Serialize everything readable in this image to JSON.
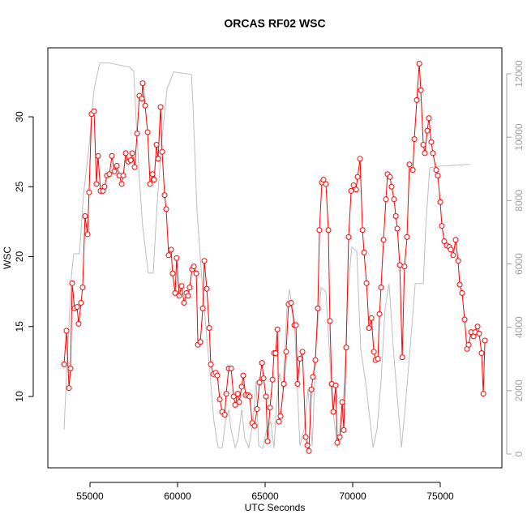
{
  "chart_data": {
    "type": "line",
    "title": "ORCAS RF02 WSC",
    "xlabel": "UTC Seconds",
    "ylabel": "WSC",
    "xlim": [
      52593,
      78518
    ],
    "xticks": [
      55000,
      60000,
      65000,
      70000,
      75000
    ],
    "ylim": [
      4.9,
      34.93
    ],
    "yticks": [
      10,
      15,
      20,
      25,
      30
    ],
    "y2lim": [
      -435,
      12819
    ],
    "y2ticks": [
      0,
      2000,
      4000,
      6000,
      8000,
      10000,
      12000
    ],
    "series": [
      {
        "color": "#ff0000",
        "markers": true,
        "x": [
          53520,
          53660,
          53800,
          53890,
          53980,
          54120,
          54260,
          54350,
          54490,
          54580,
          54720,
          54860,
          54950,
          55090,
          55230,
          55370,
          55460,
          55600,
          55740,
          55830,
          55970,
          56110,
          56250,
          56390,
          56530,
          56670,
          56810,
          56900,
          57040,
          57180,
          57320,
          57410,
          57550,
          57690,
          57820,
          57960,
          58010,
          58150,
          58290,
          58430,
          58570,
          58660,
          58800,
          58890,
          59030,
          59120,
          59260,
          59350,
          59490,
          59630,
          59720,
          59860,
          59950,
          60090,
          60230,
          60370,
          60510,
          60600,
          60690,
          60830,
          60930,
          61070,
          61160,
          61300,
          61440,
          61530,
          61670,
          61810,
          61900,
          62040,
          62180,
          62270,
          62410,
          62550,
          62690,
          62780,
          62920,
          63060,
          63200,
          63290,
          63430,
          63520,
          63660,
          63750,
          63890,
          64030,
          64120,
          64260,
          64400,
          64540,
          64680,
          64820,
          64910,
          65050,
          65140,
          65280,
          65420,
          65510,
          65600,
          65700,
          65790,
          65880,
          66070,
          66200,
          66340,
          66480,
          66670,
          66760,
          66850,
          66990,
          67130,
          67320,
          67410,
          67500,
          67640,
          67730,
          67870,
          68010,
          68100,
          68240,
          68330,
          68470,
          68610,
          68700,
          68800,
          68890,
          69030,
          69120,
          69260,
          69400,
          69490,
          69630,
          69770,
          69910,
          70050,
          70190,
          70280,
          70420,
          70560,
          70650,
          70790,
          70930,
          71070,
          71210,
          71300,
          71440,
          71530,
          71620,
          71760,
          71900,
          71990,
          72130,
          72220,
          72360,
          72460,
          72550,
          72690,
          72830,
          72960,
          73100,
          73240,
          73430,
          73520,
          73660,
          73800,
          73890,
          74030,
          74120,
          74260,
          74350,
          74490,
          74580,
          74770,
          74860,
          75000,
          75090,
          75230,
          75370,
          75510,
          75600,
          75740,
          75880,
          76020,
          76110,
          76250,
          76390,
          76530,
          76620,
          76760,
          76900,
          76990,
          77130,
          77220,
          77360,
          77460,
          77550
        ],
        "values": [
          12.3,
          14.7,
          10.6,
          12.0,
          18.1,
          16.3,
          16.4,
          15.2,
          16.7,
          17.8,
          22.9,
          21.6,
          24.6,
          30.2,
          30.4,
          25.2,
          27.2,
          24.7,
          24.7,
          25.0,
          25.8,
          25.9,
          27.2,
          26.1,
          26.5,
          25.8,
          25.2,
          25.8,
          27.4,
          26.8,
          26.9,
          27.4,
          26.4,
          28.8,
          31.5,
          31.3,
          32.4,
          30.8,
          28.9,
          25.2,
          25.9,
          25.5,
          28.0,
          27.0,
          30.7,
          27.5,
          24.4,
          23.4,
          20.1,
          20.5,
          18.8,
          17.4,
          19.9,
          17.2,
          17.9,
          16.7,
          17.4,
          17.2,
          17.8,
          19.1,
          19.3,
          18.8,
          13.7,
          13.9,
          16.3,
          19.7,
          17.7,
          14.9,
          12.3,
          11.6,
          11.7,
          11.5,
          9.8,
          8.9,
          8.7,
          10.2,
          12.0,
          12.0,
          10.0,
          9.4,
          10.2,
          9.6,
          10.7,
          11.5,
          10.1,
          10.1,
          10.0,
          8.1,
          7.9,
          9.1,
          11.0,
          12.4,
          11.3,
          10.0,
          6.8,
          9.2,
          11.2,
          13.1,
          13.1,
          14.8,
          8.2,
          8.6,
          10.9,
          13.2,
          16.6,
          16.7,
          15.1,
          15.1,
          10.9,
          12.7,
          13.2,
          7.1,
          6.5,
          6.1,
          10.5,
          11.4,
          12.6,
          16.3,
          21.9,
          25.3,
          25.5,
          25.2,
          21.9,
          15.4,
          10.9,
          8.9,
          10.8,
          6.7,
          7.1,
          9.6,
          7.6,
          13.5,
          21.4,
          24.7,
          25.1,
          24.8,
          25.7,
          27.0,
          21.9,
          20.3,
          18.1,
          14.9,
          15.6,
          13.2,
          12.6,
          12.7,
          15.9,
          17.8,
          21.2,
          24.1,
          25.9,
          25.7,
          25.0,
          24.1,
          22.9,
          22.0,
          19.4,
          12.8,
          19.3,
          21.4,
          26.6,
          26.2,
          28.4,
          31.2,
          33.8,
          31.9,
          28.0,
          27.4,
          29.0,
          29.9,
          28.2,
          27.4,
          26.2,
          25.8,
          23.9,
          22.2,
          21.1,
          20.8,
          20.7,
          20.5,
          20.1,
          21.2,
          19.7,
          18.0,
          17.4,
          15.5,
          13.4,
          13.7,
          14.6,
          14.3,
          14.6,
          15.0,
          14.5,
          13.1,
          10.2,
          14.0
        ]
      },
      {
        "color": "#bebebe",
        "axis": "y2",
        "markers": false,
        "x": [
          53520,
          53750,
          53940,
          54070,
          54400,
          54630,
          54950,
          55230,
          55560,
          56110,
          57270,
          57500,
          57640,
          57820,
          58010,
          58330,
          58610,
          58840,
          59120,
          59400,
          59770,
          60790,
          60880,
          61110,
          61440,
          61810,
          62080,
          62320,
          62550,
          62730,
          62920,
          63060,
          63290,
          63470,
          63660,
          63840,
          64070,
          64310,
          64490,
          64630,
          64860,
          65090,
          65320,
          65510,
          65650,
          65830,
          66020,
          66250,
          66390,
          66670,
          66990,
          67220,
          67450,
          67690,
          67920,
          68200,
          68470,
          68660,
          68840,
          69120,
          69310,
          69540,
          69720,
          69950,
          70230,
          70460,
          70790,
          71160,
          71390,
          71620,
          71850,
          72080,
          72320,
          72780,
          73010,
          73240,
          73570,
          74030,
          74170,
          74400,
          75090,
          76710
        ],
        "values": [
          768,
          3580,
          5630,
          6320,
          6320,
          8190,
          9730,
          11520,
          12340,
          12340,
          12210,
          12080,
          10500,
          8700,
          7170,
          5710,
          5710,
          7940,
          9980,
          11520,
          12060,
          11980,
          11010,
          7680,
          5120,
          2820,
          1020,
          200,
          200,
          1020,
          1410,
          770,
          200,
          510,
          1410,
          510,
          200,
          1020,
          2300,
          260,
          180,
          770,
          1020,
          180,
          1540,
          2560,
          2050,
          4610,
          5200,
          4220,
          260,
          770,
          2050,
          260,
          3580,
          5250,
          5120,
          3330,
          1540,
          200,
          510,
          2300,
          5120,
          6530,
          6400,
          3330,
          2050,
          200,
          770,
          2300,
          4610,
          5380,
          3330,
          200,
          1540,
          3070,
          5380,
          5380,
          7170,
          9040,
          9090,
          9140
        ]
      }
    ]
  }
}
